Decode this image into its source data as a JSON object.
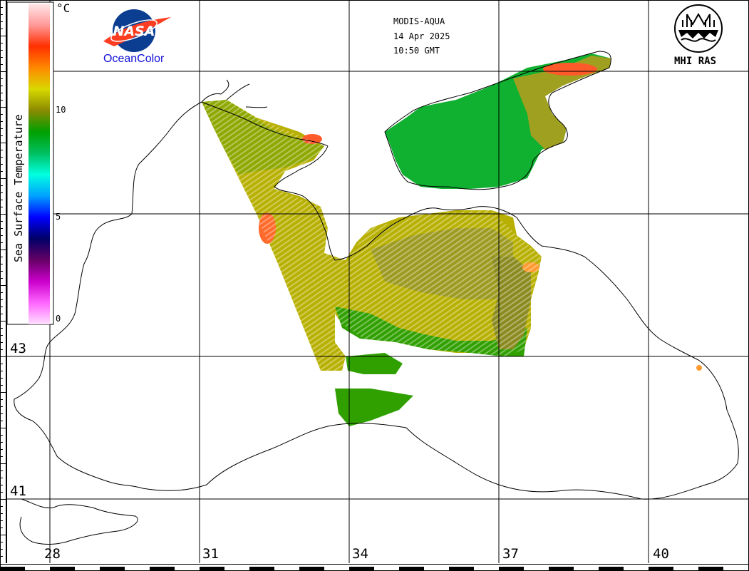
{
  "header": {
    "satellite": "MODIS-AQUA",
    "date": "14 Apr 2025",
    "time": "10:50 GMT"
  },
  "logos": {
    "nasa_text": "NASA",
    "oceancolor": "OceanColor",
    "mhi": "MHI RAS"
  },
  "colorbar": {
    "title": "Sea Surface Temperature",
    "unit": "°C",
    "ticks": [
      "10",
      "5",
      "0"
    ],
    "range": [
      0,
      15
    ],
    "stops": [
      {
        "value": 0,
        "color": "#ffe0ff"
      },
      {
        "value": 1,
        "color": "#ff66ff"
      },
      {
        "value": 2,
        "color": "#cc00cc"
      },
      {
        "value": 3,
        "color": "#660066"
      },
      {
        "value": 4,
        "color": "#000066"
      },
      {
        "value": 5,
        "color": "#0000ff"
      },
      {
        "value": 6,
        "color": "#00a0ff"
      },
      {
        "value": 7,
        "color": "#00ffe0"
      },
      {
        "value": 8,
        "color": "#00c060"
      },
      {
        "value": 9,
        "color": "#00a000"
      },
      {
        "value": 10,
        "color": "#8a8a00"
      },
      {
        "value": 11,
        "color": "#d8d800"
      },
      {
        "value": 12,
        "color": "#ff8800"
      },
      {
        "value": 13,
        "color": "#ff3000"
      },
      {
        "value": 14,
        "color": "#ff9999"
      },
      {
        "value": 15,
        "color": "#ffe8e8"
      }
    ]
  },
  "grid": {
    "lon_labels": [
      "28",
      "31",
      "34",
      "37",
      "40"
    ],
    "lat_labels": [
      "43",
      "41"
    ]
  }
}
